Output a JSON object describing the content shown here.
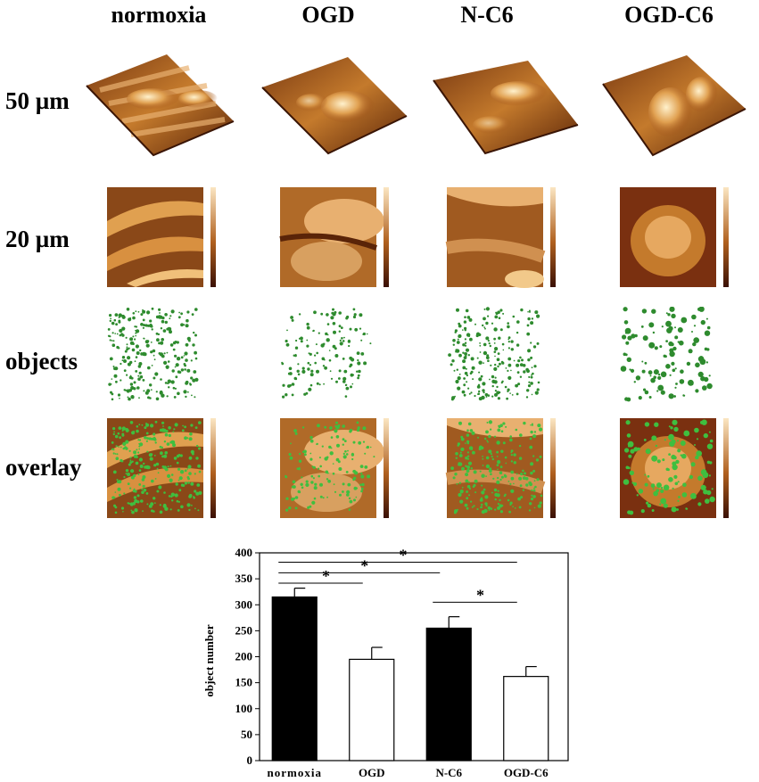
{
  "columns": [
    "normoxia",
    "OGD",
    "N-C6",
    "OGD-C6"
  ],
  "rows": [
    "50 µm",
    "20 µm",
    "objects",
    "overlay"
  ],
  "colors": {
    "bar_dark": "#000000",
    "bar_light": "#ffffff",
    "objects": "#2e8b2e",
    "afm_dark": "#4a1a08",
    "afm_mid": "#b0601e",
    "afm_light": "#f2c98a"
  },
  "chart_data": {
    "type": "bar",
    "categories": [
      "normoxia",
      "OGD",
      "N-C6",
      "OGD-C6"
    ],
    "values": [
      315,
      195,
      255,
      162
    ],
    "errors": [
      17,
      23,
      22,
      19
    ],
    "fills": [
      "#000000",
      "#ffffff",
      "#000000",
      "#ffffff"
    ],
    "ylabel": "object number",
    "xlabel": "",
    "ylim": [
      0,
      400
    ],
    "yticks": [
      "0",
      "50",
      "100",
      "150",
      "200",
      "250",
      "300",
      "350",
      "400"
    ],
    "significance": [
      {
        "from": "normoxia",
        "to": "OGD",
        "label": "*"
      },
      {
        "from": "normoxia",
        "to": "N-C6",
        "label": "*"
      },
      {
        "from": "normoxia",
        "to": "OGD-C6",
        "label": "*"
      },
      {
        "from": "N-C6",
        "to": "OGD-C6",
        "label": "*"
      }
    ],
    "grid": false
  }
}
